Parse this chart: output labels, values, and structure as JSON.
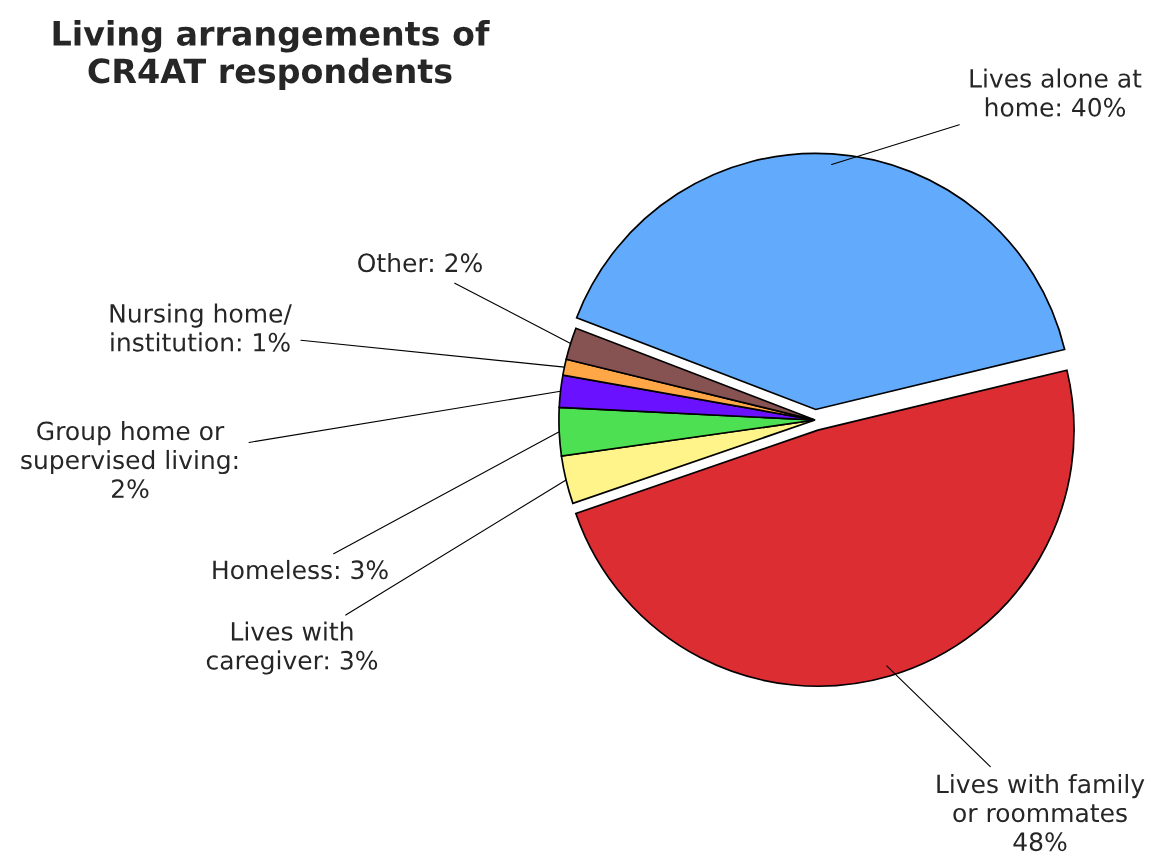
{
  "chart_data": {
    "type": "pie",
    "title": "Living arrangements of\nCR4AT respondents",
    "categories": [
      "Lives alone at\nhome: 40%",
      "Lives with family\nor roommates\n48%",
      "Lives with\ncaregiver: 3%",
      "Homeless: 3%",
      "Group home or\nsupervised living:\n2%",
      "Nursing home/\ninstitution: 1%",
      "Other: 2%"
    ],
    "values": [
      40,
      48,
      3,
      3,
      2,
      1,
      2
    ],
    "colors": [
      "#62aafc",
      "#dc2d32",
      "#fff48a",
      "#4de052",
      "#6a12ff",
      "#ffa646",
      "#875252"
    ],
    "legend": false
  }
}
